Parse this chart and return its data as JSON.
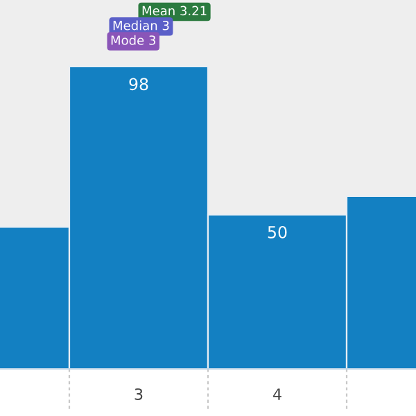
{
  "chart_data": {
    "type": "bar",
    "categories": [
      null,
      "3",
      "4",
      null
    ],
    "values": [
      46,
      98,
      50,
      56
    ],
    "value_labels": [
      null,
      "98",
      "50",
      null
    ],
    "color": "#1380c2",
    "annotations": [
      "Mean 3.21",
      "Median 3",
      "Mode 3"
    ],
    "grid": false,
    "legend": false
  }
}
